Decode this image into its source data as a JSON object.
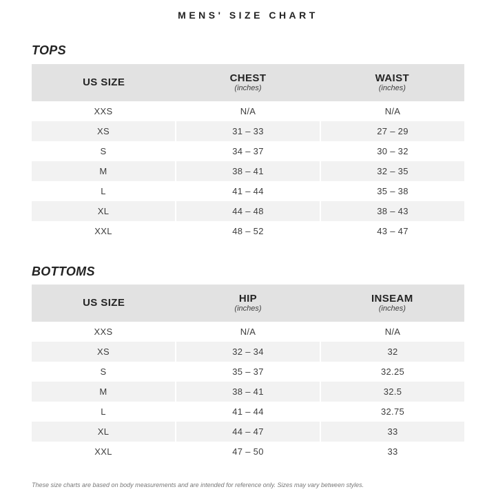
{
  "page": {
    "title": "MENS' SIZE CHART",
    "footnote": "These size charts are based on body measurements and are intended for reference only. Sizes may vary between styles."
  },
  "colors": {
    "header_bg": "#e2e2e2",
    "stripe_bg": "#f2f2f2",
    "text_dark": "#232323",
    "text_value": "#3d3d3d",
    "footnote_gray": "#777777"
  },
  "chart_data": [
    {
      "type": "table",
      "section": "TOPS",
      "columns": [
        {
          "label": "US SIZE",
          "sub": ""
        },
        {
          "label": "CHEST",
          "sub": "(inches)"
        },
        {
          "label": "WAIST",
          "sub": "(inches)"
        }
      ],
      "rows": [
        [
          "XXS",
          "N/A",
          "N/A"
        ],
        [
          "XS",
          "31 – 33",
          "27 – 29"
        ],
        [
          "S",
          "34 – 37",
          "30 – 32"
        ],
        [
          "M",
          "38 – 41",
          "32 – 35"
        ],
        [
          "L",
          "41 – 44",
          "35 – 38"
        ],
        [
          "XL",
          "44 – 48",
          "38 – 43"
        ],
        [
          "XXL",
          "48 – 52",
          "43 – 47"
        ]
      ]
    },
    {
      "type": "table",
      "section": "BOTTOMS",
      "columns": [
        {
          "label": "US SIZE",
          "sub": ""
        },
        {
          "label": "HIP",
          "sub": "(inches)"
        },
        {
          "label": "INSEAM",
          "sub": "(inches)"
        }
      ],
      "rows": [
        [
          "XXS",
          "N/A",
          "N/A"
        ],
        [
          "XS",
          "32 – 34",
          "32"
        ],
        [
          "S",
          "35 – 37",
          "32.25"
        ],
        [
          "M",
          "38 – 41",
          "32.5"
        ],
        [
          "L",
          "41 – 44",
          "32.75"
        ],
        [
          "XL",
          "44 – 47",
          "33"
        ],
        [
          "XXL",
          "47 – 50",
          "33"
        ]
      ]
    }
  ]
}
